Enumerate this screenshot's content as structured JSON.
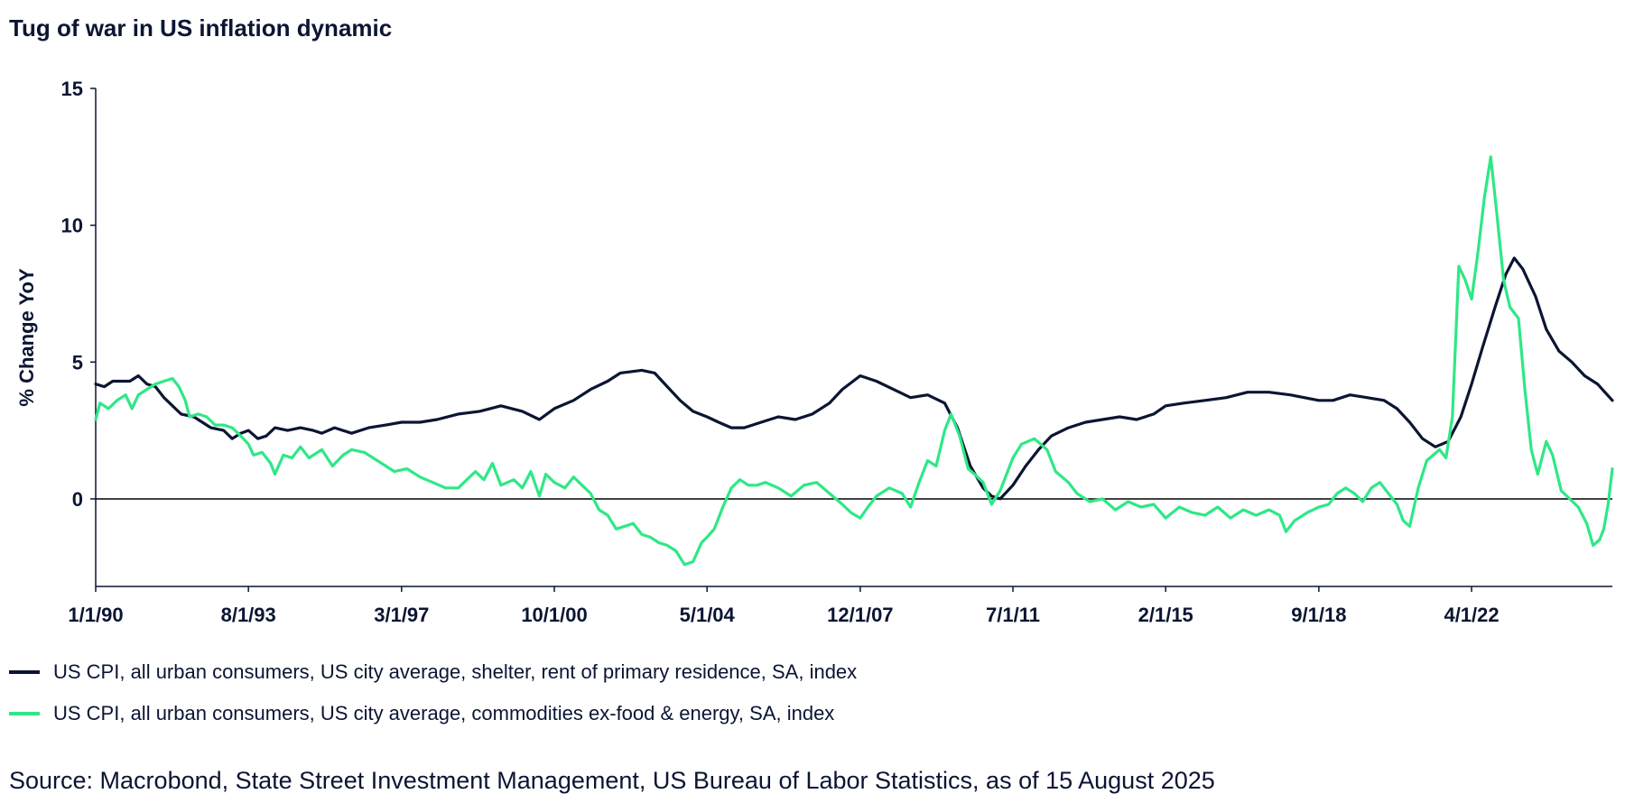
{
  "title": "Tug of war in US inflation dynamic",
  "source": "Source: Macrobond, State Street Investment Management, US Bureau of Labor Statistics, as of 15 August 2025",
  "chart_data": {
    "type": "line",
    "title": "Tug of war in US inflation dynamic",
    "xlabel": "",
    "ylabel": "% Change YoY",
    "x_range": [
      1990.0,
      2025.55
    ],
    "ylim": [
      -3.2,
      15
    ],
    "yticks": [
      0,
      5,
      10,
      15
    ],
    "xticks": [
      {
        "label": "1/1/90",
        "x": 1990.0
      },
      {
        "label": "8/1/93",
        "x": 1993.58
      },
      {
        "label": "3/1/97",
        "x": 1997.17
      },
      {
        "label": "10/1/00",
        "x": 2000.75
      },
      {
        "label": "5/1/04",
        "x": 2004.33
      },
      {
        "label": "12/1/07",
        "x": 2007.92
      },
      {
        "label": "7/1/11",
        "x": 2011.5
      },
      {
        "label": "2/1/15",
        "x": 2015.08
      },
      {
        "label": "9/1/18",
        "x": 2018.67
      },
      {
        "label": "4/1/22",
        "x": 2022.25
      }
    ],
    "zero_line": true,
    "grid": false,
    "legend_position": "bottom",
    "series": [
      {
        "name": "US CPI, all urban consumers, US city average, shelter, rent of primary residence, SA, index",
        "color": "#0b1533",
        "points": [
          [
            1990.0,
            4.2
          ],
          [
            1990.2,
            4.1
          ],
          [
            1990.4,
            4.3
          ],
          [
            1990.8,
            4.3
          ],
          [
            1991.0,
            4.5
          ],
          [
            1991.2,
            4.2
          ],
          [
            1991.4,
            4.1
          ],
          [
            1991.6,
            3.7
          ],
          [
            1991.8,
            3.4
          ],
          [
            1992.0,
            3.1
          ],
          [
            1992.3,
            3.0
          ],
          [
            1992.5,
            2.8
          ],
          [
            1992.7,
            2.6
          ],
          [
            1993.0,
            2.5
          ],
          [
            1993.2,
            2.2
          ],
          [
            1993.4,
            2.4
          ],
          [
            1993.58,
            2.5
          ],
          [
            1993.8,
            2.2
          ],
          [
            1994.0,
            2.3
          ],
          [
            1994.2,
            2.6
          ],
          [
            1994.5,
            2.5
          ],
          [
            1994.8,
            2.6
          ],
          [
            1995.1,
            2.5
          ],
          [
            1995.3,
            2.4
          ],
          [
            1995.6,
            2.6
          ],
          [
            1996.0,
            2.4
          ],
          [
            1996.4,
            2.6
          ],
          [
            1996.8,
            2.7
          ],
          [
            1997.17,
            2.8
          ],
          [
            1997.6,
            2.8
          ],
          [
            1998.0,
            2.9
          ],
          [
            1998.5,
            3.1
          ],
          [
            1999.0,
            3.2
          ],
          [
            1999.5,
            3.4
          ],
          [
            2000.0,
            3.2
          ],
          [
            2000.4,
            2.9
          ],
          [
            2000.75,
            3.3
          ],
          [
            2001.2,
            3.6
          ],
          [
            2001.6,
            4.0
          ],
          [
            2002.0,
            4.3
          ],
          [
            2002.3,
            4.6
          ],
          [
            2002.8,
            4.7
          ],
          [
            2003.1,
            4.6
          ],
          [
            2003.4,
            4.1
          ],
          [
            2003.7,
            3.6
          ],
          [
            2004.0,
            3.2
          ],
          [
            2004.33,
            3.0
          ],
          [
            2004.6,
            2.8
          ],
          [
            2004.9,
            2.6
          ],
          [
            2005.2,
            2.6
          ],
          [
            2005.6,
            2.8
          ],
          [
            2006.0,
            3.0
          ],
          [
            2006.4,
            2.9
          ],
          [
            2006.8,
            3.1
          ],
          [
            2007.2,
            3.5
          ],
          [
            2007.5,
            4.0
          ],
          [
            2007.92,
            4.5
          ],
          [
            2008.3,
            4.3
          ],
          [
            2008.7,
            4.0
          ],
          [
            2009.1,
            3.7
          ],
          [
            2009.5,
            3.8
          ],
          [
            2009.9,
            3.5
          ],
          [
            2010.2,
            2.6
          ],
          [
            2010.5,
            1.2
          ],
          [
            2010.8,
            0.4
          ],
          [
            2011.0,
            0.1
          ],
          [
            2011.2,
            0.0
          ],
          [
            2011.5,
            0.5
          ],
          [
            2011.8,
            1.2
          ],
          [
            2012.1,
            1.8
          ],
          [
            2012.4,
            2.3
          ],
          [
            2012.8,
            2.6
          ],
          [
            2013.2,
            2.8
          ],
          [
            2013.6,
            2.9
          ],
          [
            2014.0,
            3.0
          ],
          [
            2014.4,
            2.9
          ],
          [
            2014.8,
            3.1
          ],
          [
            2015.08,
            3.4
          ],
          [
            2015.5,
            3.5
          ],
          [
            2016.0,
            3.6
          ],
          [
            2016.5,
            3.7
          ],
          [
            2017.0,
            3.9
          ],
          [
            2017.5,
            3.9
          ],
          [
            2018.0,
            3.8
          ],
          [
            2018.67,
            3.6
          ],
          [
            2019.0,
            3.6
          ],
          [
            2019.4,
            3.8
          ],
          [
            2019.8,
            3.7
          ],
          [
            2020.2,
            3.6
          ],
          [
            2020.5,
            3.3
          ],
          [
            2020.8,
            2.8
          ],
          [
            2021.1,
            2.2
          ],
          [
            2021.4,
            1.9
          ],
          [
            2021.7,
            2.1
          ],
          [
            2022.0,
            3.0
          ],
          [
            2022.25,
            4.2
          ],
          [
            2022.5,
            5.5
          ],
          [
            2022.8,
            7.0
          ],
          [
            2023.05,
            8.2
          ],
          [
            2023.25,
            8.8
          ],
          [
            2023.45,
            8.4
          ],
          [
            2023.75,
            7.4
          ],
          [
            2024.0,
            6.2
          ],
          [
            2024.3,
            5.4
          ],
          [
            2024.6,
            5.0
          ],
          [
            2024.9,
            4.5
          ],
          [
            2025.2,
            4.2
          ],
          [
            2025.55,
            3.6
          ]
        ]
      },
      {
        "name": "US CPI, all urban consumers, US city average, commodities ex-food & energy, SA, index",
        "color": "#2ee886",
        "points": [
          [
            1990.0,
            2.9
          ],
          [
            1990.1,
            3.5
          ],
          [
            1990.3,
            3.3
          ],
          [
            1990.5,
            3.6
          ],
          [
            1990.7,
            3.8
          ],
          [
            1990.85,
            3.3
          ],
          [
            1991.0,
            3.8
          ],
          [
            1991.2,
            4.0
          ],
          [
            1991.4,
            4.2
          ],
          [
            1991.6,
            4.3
          ],
          [
            1991.8,
            4.4
          ],
          [
            1991.95,
            4.1
          ],
          [
            1992.1,
            3.6
          ],
          [
            1992.2,
            3.0
          ],
          [
            1992.4,
            3.1
          ],
          [
            1992.6,
            3.0
          ],
          [
            1992.8,
            2.7
          ],
          [
            1993.0,
            2.7
          ],
          [
            1993.2,
            2.6
          ],
          [
            1993.4,
            2.3
          ],
          [
            1993.58,
            2.0
          ],
          [
            1993.7,
            1.6
          ],
          [
            1993.9,
            1.7
          ],
          [
            1994.1,
            1.3
          ],
          [
            1994.2,
            0.9
          ],
          [
            1994.4,
            1.6
          ],
          [
            1994.6,
            1.5
          ],
          [
            1994.8,
            1.9
          ],
          [
            1995.0,
            1.5
          ],
          [
            1995.3,
            1.8
          ],
          [
            1995.55,
            1.2
          ],
          [
            1995.8,
            1.6
          ],
          [
            1996.0,
            1.8
          ],
          [
            1996.3,
            1.7
          ],
          [
            1996.5,
            1.5
          ],
          [
            1996.8,
            1.2
          ],
          [
            1997.0,
            1.0
          ],
          [
            1997.3,
            1.1
          ],
          [
            1997.6,
            0.8
          ],
          [
            1997.9,
            0.6
          ],
          [
            1998.2,
            0.4
          ],
          [
            1998.5,
            0.4
          ],
          [
            1998.7,
            0.7
          ],
          [
            1998.9,
            1.0
          ],
          [
            1999.1,
            0.7
          ],
          [
            1999.3,
            1.3
          ],
          [
            1999.5,
            0.5
          ],
          [
            1999.8,
            0.7
          ],
          [
            2000.0,
            0.4
          ],
          [
            2000.2,
            1.0
          ],
          [
            2000.4,
            0.1
          ],
          [
            2000.55,
            0.9
          ],
          [
            2000.75,
            0.6
          ],
          [
            2001.0,
            0.4
          ],
          [
            2001.2,
            0.8
          ],
          [
            2001.4,
            0.5
          ],
          [
            2001.6,
            0.2
          ],
          [
            2001.8,
            -0.4
          ],
          [
            2002.0,
            -0.6
          ],
          [
            2002.2,
            -1.1
          ],
          [
            2002.4,
            -1.0
          ],
          [
            2002.6,
            -0.9
          ],
          [
            2002.8,
            -1.3
          ],
          [
            2003.0,
            -1.4
          ],
          [
            2003.2,
            -1.6
          ],
          [
            2003.4,
            -1.7
          ],
          [
            2003.6,
            -1.9
          ],
          [
            2003.8,
            -2.4
          ],
          [
            2004.0,
            -2.3
          ],
          [
            2004.2,
            -1.6
          ],
          [
            2004.33,
            -1.4
          ],
          [
            2004.5,
            -1.1
          ],
          [
            2004.7,
            -0.3
          ],
          [
            2004.9,
            0.4
          ],
          [
            2005.1,
            0.7
          ],
          [
            2005.3,
            0.5
          ],
          [
            2005.5,
            0.5
          ],
          [
            2005.7,
            0.6
          ],
          [
            2006.0,
            0.4
          ],
          [
            2006.3,
            0.1
          ],
          [
            2006.6,
            0.5
          ],
          [
            2006.9,
            0.6
          ],
          [
            2007.2,
            0.2
          ],
          [
            2007.5,
            -0.2
          ],
          [
            2007.7,
            -0.5
          ],
          [
            2007.92,
            -0.7
          ],
          [
            2008.1,
            -0.3
          ],
          [
            2008.3,
            0.1
          ],
          [
            2008.6,
            0.4
          ],
          [
            2008.9,
            0.2
          ],
          [
            2009.1,
            -0.3
          ],
          [
            2009.3,
            0.6
          ],
          [
            2009.5,
            1.4
          ],
          [
            2009.7,
            1.2
          ],
          [
            2009.9,
            2.5
          ],
          [
            2010.05,
            3.1
          ],
          [
            2010.25,
            2.3
          ],
          [
            2010.45,
            1.1
          ],
          [
            2010.6,
            0.9
          ],
          [
            2010.8,
            0.6
          ],
          [
            2011.0,
            -0.2
          ],
          [
            2011.2,
            0.3
          ],
          [
            2011.5,
            1.5
          ],
          [
            2011.7,
            2.0
          ],
          [
            2012.0,
            2.2
          ],
          [
            2012.3,
            1.8
          ],
          [
            2012.5,
            1.0
          ],
          [
            2012.8,
            0.6
          ],
          [
            2013.0,
            0.2
          ],
          [
            2013.3,
            -0.1
          ],
          [
            2013.6,
            0.0
          ],
          [
            2013.9,
            -0.4
          ],
          [
            2014.2,
            -0.1
          ],
          [
            2014.5,
            -0.3
          ],
          [
            2014.8,
            -0.2
          ],
          [
            2015.08,
            -0.7
          ],
          [
            2015.4,
            -0.3
          ],
          [
            2015.7,
            -0.5
          ],
          [
            2016.0,
            -0.6
          ],
          [
            2016.3,
            -0.3
          ],
          [
            2016.6,
            -0.7
          ],
          [
            2016.9,
            -0.4
          ],
          [
            2017.2,
            -0.6
          ],
          [
            2017.5,
            -0.4
          ],
          [
            2017.75,
            -0.6
          ],
          [
            2017.9,
            -1.2
          ],
          [
            2018.1,
            -0.8
          ],
          [
            2018.4,
            -0.5
          ],
          [
            2018.67,
            -0.3
          ],
          [
            2018.9,
            -0.2
          ],
          [
            2019.1,
            0.2
          ],
          [
            2019.3,
            0.4
          ],
          [
            2019.5,
            0.2
          ],
          [
            2019.7,
            -0.1
          ],
          [
            2019.9,
            0.4
          ],
          [
            2020.1,
            0.6
          ],
          [
            2020.3,
            0.2
          ],
          [
            2020.5,
            -0.2
          ],
          [
            2020.65,
            -0.8
          ],
          [
            2020.8,
            -1.0
          ],
          [
            2021.0,
            0.4
          ],
          [
            2021.2,
            1.4
          ],
          [
            2021.5,
            1.8
          ],
          [
            2021.65,
            1.5
          ],
          [
            2021.8,
            3.0
          ],
          [
            2021.95,
            8.5
          ],
          [
            2022.1,
            8.0
          ],
          [
            2022.25,
            7.3
          ],
          [
            2022.4,
            9.0
          ],
          [
            2022.55,
            11.0
          ],
          [
            2022.7,
            12.5
          ],
          [
            2022.85,
            10.3
          ],
          [
            2023.0,
            8.0
          ],
          [
            2023.15,
            7.0
          ],
          [
            2023.35,
            6.6
          ],
          [
            2023.5,
            4.0
          ],
          [
            2023.65,
            1.8
          ],
          [
            2023.8,
            0.9
          ],
          [
            2024.0,
            2.1
          ],
          [
            2024.15,
            1.6
          ],
          [
            2024.35,
            0.3
          ],
          [
            2024.55,
            0.0
          ],
          [
            2024.75,
            -0.3
          ],
          [
            2024.95,
            -0.9
          ],
          [
            2025.1,
            -1.7
          ],
          [
            2025.25,
            -1.5
          ],
          [
            2025.35,
            -1.1
          ],
          [
            2025.45,
            -0.2
          ],
          [
            2025.55,
            1.1
          ]
        ]
      }
    ]
  }
}
